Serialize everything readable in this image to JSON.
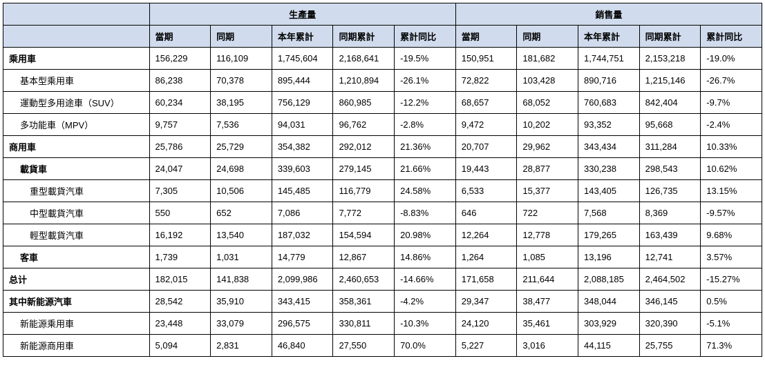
{
  "header": {
    "group1": "生產量",
    "group2": "銷售量",
    "cols": [
      "當期",
      "同期",
      "本年累計",
      "同期累計",
      "累計同比"
    ]
  },
  "rows": [
    {
      "label": "乘用車",
      "indent": 0,
      "bold": true,
      "p": [
        "156,229",
        "116,109",
        "1,745,604",
        "2,168,641",
        "-19.5%"
      ],
      "s": [
        "150,951",
        "181,682",
        "1,744,751",
        "2,153,218",
        "-19.0%"
      ]
    },
    {
      "label": "基本型乘用車",
      "indent": 1,
      "bold": false,
      "p": [
        "86,238",
        "70,378",
        "895,444",
        "1,210,894",
        "-26.1%"
      ],
      "s": [
        "72,822",
        "103,428",
        "890,716",
        "1,215,146",
        "-26.7%"
      ]
    },
    {
      "label": "運動型多用途車（SUV）",
      "indent": 1,
      "bold": false,
      "p": [
        "60,234",
        "38,195",
        "756,129",
        "860,985",
        "-12.2%"
      ],
      "s": [
        "68,657",
        "68,052",
        "760,683",
        "842,404",
        "-9.7%"
      ]
    },
    {
      "label": "多功能車（MPV）",
      "indent": 1,
      "bold": false,
      "p": [
        "9,757",
        "7,536",
        "94,031",
        "96,762",
        "-2.8%"
      ],
      "s": [
        "9,472",
        "10,202",
        "93,352",
        "95,668",
        "-2.4%"
      ]
    },
    {
      "label": "商用車",
      "indent": 0,
      "bold": true,
      "p": [
        "25,786",
        "25,729",
        "354,382",
        "292,012",
        "21.36%"
      ],
      "s": [
        "20,707",
        "29,962",
        "343,434",
        "311,284",
        "10.33%"
      ]
    },
    {
      "label": "載貨車",
      "indent": 1,
      "bold": true,
      "p": [
        "24,047",
        "24,698",
        "339,603",
        "279,145",
        "21.66%"
      ],
      "s": [
        "19,443",
        "28,877",
        "330,238",
        "298,543",
        "10.62%"
      ]
    },
    {
      "label": "重型載貨汽車",
      "indent": 2,
      "bold": false,
      "p": [
        "7,305",
        "10,506",
        "145,485",
        "116,779",
        "24.58%"
      ],
      "s": [
        "6,533",
        "15,377",
        "143,405",
        "126,735",
        "13.15%"
      ]
    },
    {
      "label": "中型載貨汽車",
      "indent": 2,
      "bold": false,
      "p": [
        "550",
        "652",
        "7,086",
        "7,772",
        "-8.83%"
      ],
      "s": [
        "646",
        "722",
        "7,568",
        "8,369",
        "-9.57%"
      ]
    },
    {
      "label": "輕型載貨汽車",
      "indent": 2,
      "bold": false,
      "p": [
        "16,192",
        "13,540",
        "187,032",
        "154,594",
        "20.98%"
      ],
      "s": [
        "12,264",
        "12,778",
        "179,265",
        "163,439",
        "9.68%"
      ]
    },
    {
      "label": "客車",
      "indent": 1,
      "bold": true,
      "p": [
        "1,739",
        "1,031",
        "14,779",
        "12,867",
        "14.86%"
      ],
      "s": [
        "1,264",
        "1,085",
        "13,196",
        "12,741",
        "3.57%"
      ]
    },
    {
      "label": "总计",
      "indent": 0,
      "bold": true,
      "p": [
        "182,015",
        "141,838",
        "2,099,986",
        "2,460,653",
        "-14.66%"
      ],
      "s": [
        "171,658",
        "211,644",
        "2,088,185",
        "2,464,502",
        "-15.27%"
      ]
    },
    {
      "label": "其中新能源汽車",
      "indent": 0,
      "bold": true,
      "p": [
        "28,542",
        "35,910",
        "343,415",
        "358,361",
        "-4.2%"
      ],
      "s": [
        "29,347",
        "38,477",
        "348,044",
        "346,145",
        "0.5%"
      ]
    },
    {
      "label": "新能源乘用車",
      "indent": 1,
      "bold": false,
      "p": [
        "23,448",
        "33,079",
        "296,575",
        "330,811",
        "-10.3%"
      ],
      "s": [
        "24,120",
        "35,461",
        "303,929",
        "320,390",
        "-5.1%"
      ]
    },
    {
      "label": "新能源商用車",
      "indent": 1,
      "bold": false,
      "p": [
        "5,094",
        "2,831",
        "46,840",
        "27,550",
        "70.0%"
      ],
      "s": [
        "5,227",
        "3,016",
        "44,115",
        "25,755",
        "71.3%"
      ]
    }
  ]
}
